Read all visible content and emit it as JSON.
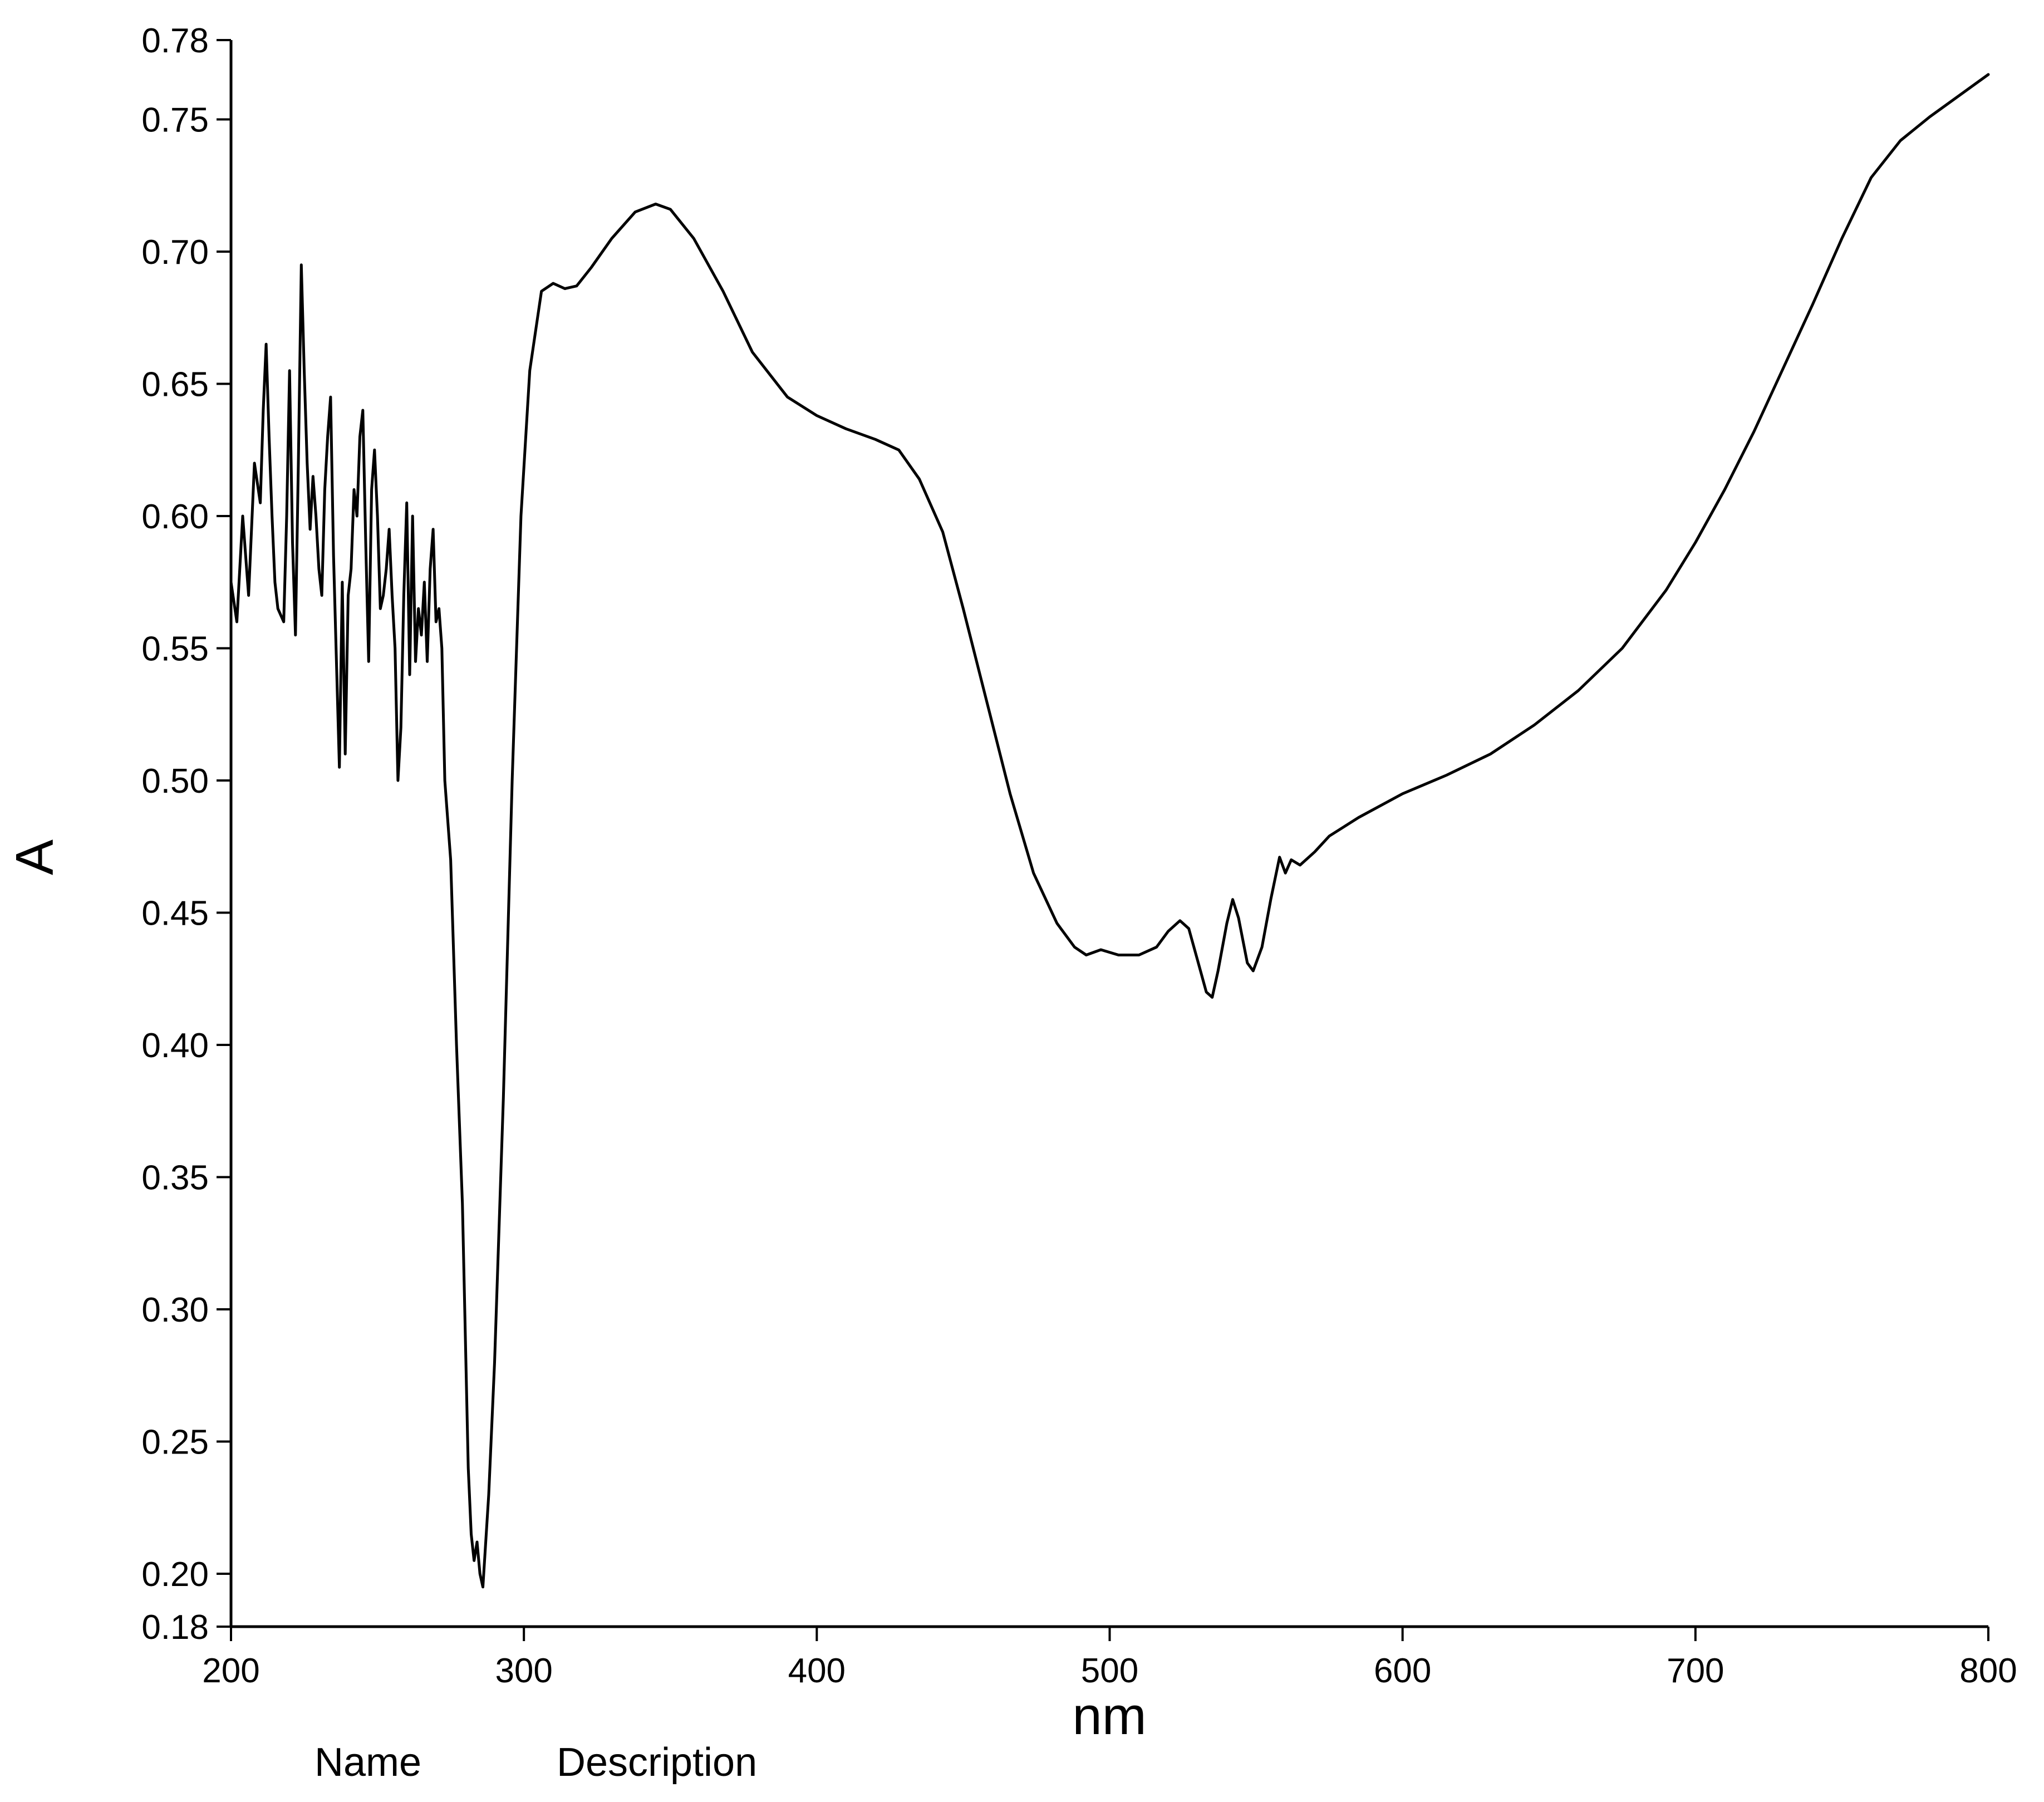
{
  "chart_data": {
    "type": "line",
    "title": "",
    "xlabel": "nm",
    "ylabel": "A",
    "xlim": [
      200,
      800
    ],
    "ylim": [
      0.18,
      0.78
    ],
    "xticks": [
      "200",
      "300",
      "400",
      "500",
      "600",
      "700",
      "800"
    ],
    "yticks": [
      "0.18",
      "0.20",
      "0.25",
      "0.30",
      "0.35",
      "0.40",
      "0.45",
      "0.50",
      "0.55",
      "0.60",
      "0.65",
      "0.70",
      "0.75",
      "0.78"
    ],
    "grid": false,
    "legend": "none",
    "footer_labels": [
      "Name",
      "Description"
    ],
    "series": [
      {
        "color": "#000000",
        "points": [
          [
            200,
            0.575
          ],
          [
            202,
            0.56
          ],
          [
            204,
            0.6
          ],
          [
            206,
            0.57
          ],
          [
            208,
            0.62
          ],
          [
            210,
            0.605
          ],
          [
            211,
            0.64
          ],
          [
            212,
            0.665
          ],
          [
            213,
            0.63
          ],
          [
            214,
            0.6
          ],
          [
            215,
            0.575
          ],
          [
            216,
            0.565
          ],
          [
            218,
            0.56
          ],
          [
            219,
            0.6
          ],
          [
            220,
            0.655
          ],
          [
            221,
            0.59
          ],
          [
            222,
            0.555
          ],
          [
            223,
            0.62
          ],
          [
            224,
            0.695
          ],
          [
            225,
            0.655
          ],
          [
            226,
            0.62
          ],
          [
            227,
            0.595
          ],
          [
            228,
            0.615
          ],
          [
            229,
            0.6
          ],
          [
            230,
            0.58
          ],
          [
            231,
            0.57
          ],
          [
            232,
            0.61
          ],
          [
            233,
            0.63
          ],
          [
            234,
            0.645
          ],
          [
            235,
            0.585
          ],
          [
            236,
            0.545
          ],
          [
            237,
            0.505
          ],
          [
            238,
            0.575
          ],
          [
            239,
            0.51
          ],
          [
            240,
            0.57
          ],
          [
            241,
            0.58
          ],
          [
            242,
            0.61
          ],
          [
            243,
            0.6
          ],
          [
            244,
            0.63
          ],
          [
            245,
            0.64
          ],
          [
            246,
            0.59
          ],
          [
            247,
            0.545
          ],
          [
            248,
            0.61
          ],
          [
            249,
            0.625
          ],
          [
            250,
            0.6
          ],
          [
            251,
            0.565
          ],
          [
            252,
            0.57
          ],
          [
            253,
            0.58
          ],
          [
            254,
            0.595
          ],
          [
            255,
            0.57
          ],
          [
            256,
            0.55
          ],
          [
            257,
            0.5
          ],
          [
            258,
            0.52
          ],
          [
            259,
            0.57
          ],
          [
            260,
            0.605
          ],
          [
            261,
            0.54
          ],
          [
            262,
            0.6
          ],
          [
            263,
            0.545
          ],
          [
            264,
            0.565
          ],
          [
            265,
            0.555
          ],
          [
            266,
            0.575
          ],
          [
            267,
            0.545
          ],
          [
            268,
            0.58
          ],
          [
            269,
            0.595
          ],
          [
            270,
            0.56
          ],
          [
            271,
            0.565
          ],
          [
            272,
            0.55
          ],
          [
            273,
            0.5
          ],
          [
            275,
            0.47
          ],
          [
            277,
            0.4
          ],
          [
            279,
            0.34
          ],
          [
            281,
            0.24
          ],
          [
            282,
            0.215
          ],
          [
            283,
            0.205
          ],
          [
            284,
            0.212
          ],
          [
            285,
            0.2
          ],
          [
            286,
            0.195
          ],
          [
            288,
            0.23
          ],
          [
            290,
            0.28
          ],
          [
            293,
            0.38
          ],
          [
            296,
            0.5
          ],
          [
            299,
            0.6
          ],
          [
            302,
            0.655
          ],
          [
            306,
            0.685
          ],
          [
            310,
            0.688
          ],
          [
            314,
            0.686
          ],
          [
            318,
            0.687
          ],
          [
            323,
            0.694
          ],
          [
            330,
            0.705
          ],
          [
            338,
            0.715
          ],
          [
            345,
            0.718
          ],
          [
            350,
            0.716
          ],
          [
            358,
            0.705
          ],
          [
            368,
            0.685
          ],
          [
            378,
            0.662
          ],
          [
            390,
            0.645
          ],
          [
            400,
            0.638
          ],
          [
            410,
            0.633
          ],
          [
            420,
            0.629
          ],
          [
            428,
            0.625
          ],
          [
            435,
            0.614
          ],
          [
            443,
            0.594
          ],
          [
            450,
            0.565
          ],
          [
            458,
            0.53
          ],
          [
            466,
            0.495
          ],
          [
            474,
            0.465
          ],
          [
            482,
            0.446
          ],
          [
            488,
            0.437
          ],
          [
            492,
            0.434
          ],
          [
            497,
            0.436
          ],
          [
            503,
            0.434
          ],
          [
            510,
            0.434
          ],
          [
            516,
            0.437
          ],
          [
            520,
            0.443
          ],
          [
            524,
            0.447
          ],
          [
            527,
            0.444
          ],
          [
            530,
            0.432
          ],
          [
            533,
            0.42
          ],
          [
            535,
            0.418
          ],
          [
            537,
            0.428
          ],
          [
            540,
            0.446
          ],
          [
            542,
            0.455
          ],
          [
            544,
            0.448
          ],
          [
            547,
            0.431
          ],
          [
            549,
            0.428
          ],
          [
            552,
            0.437
          ],
          [
            555,
            0.455
          ],
          [
            558,
            0.471
          ],
          [
            560,
            0.465
          ],
          [
            562,
            0.47
          ],
          [
            565,
            0.468
          ],
          [
            570,
            0.473
          ],
          [
            575,
            0.479
          ],
          [
            585,
            0.486
          ],
          [
            600,
            0.495
          ],
          [
            615,
            0.502
          ],
          [
            630,
            0.51
          ],
          [
            645,
            0.521
          ],
          [
            660,
            0.534
          ],
          [
            675,
            0.55
          ],
          [
            690,
            0.572
          ],
          [
            700,
            0.59
          ],
          [
            710,
            0.61
          ],
          [
            720,
            0.632
          ],
          [
            730,
            0.656
          ],
          [
            740,
            0.68
          ],
          [
            750,
            0.705
          ],
          [
            760,
            0.728
          ],
          [
            770,
            0.742
          ],
          [
            780,
            0.751
          ],
          [
            790,
            0.759
          ],
          [
            800,
            0.767
          ]
        ]
      }
    ]
  }
}
